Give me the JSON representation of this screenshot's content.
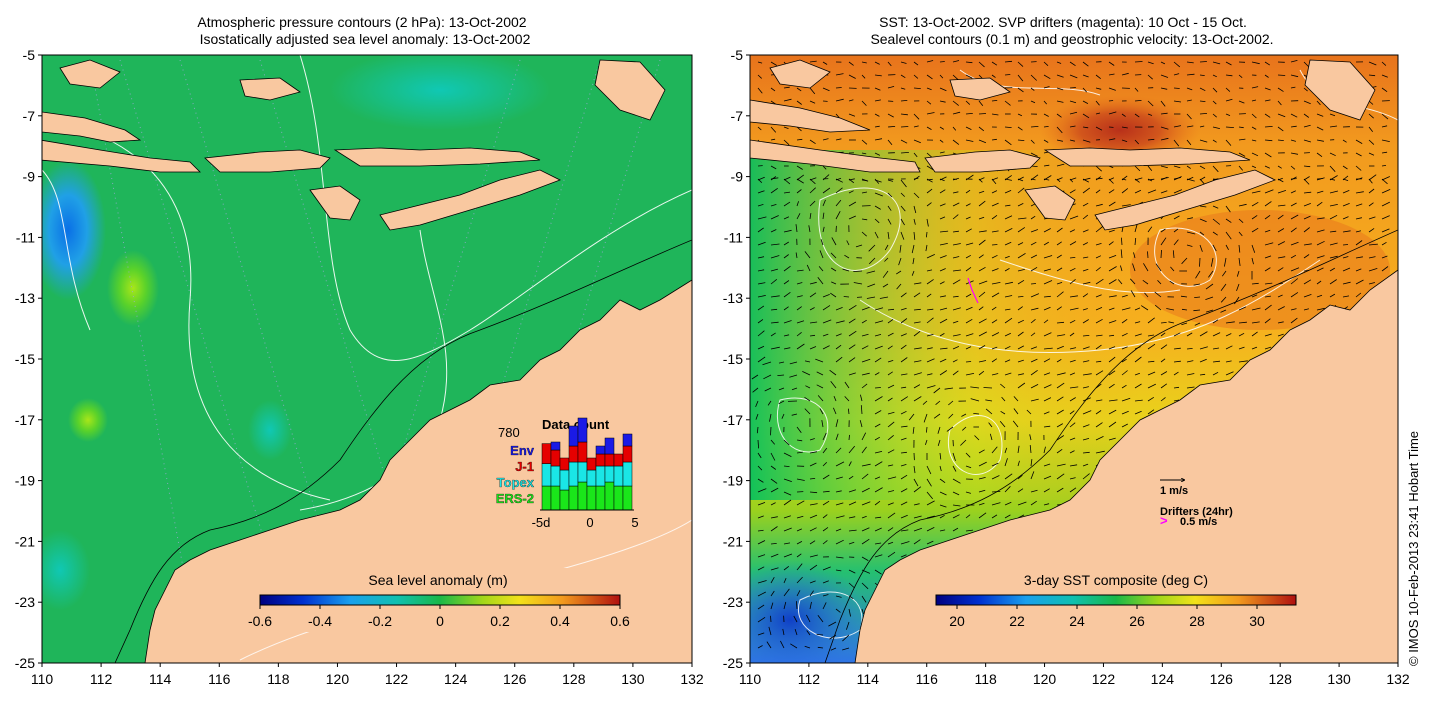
{
  "left_panel": {
    "title_line1": "Atmospheric pressure contours (2 hPa): 13-Oct-2002",
    "title_line2": "Isostatically adjusted sea level anomaly: 13-Oct-2002",
    "colorbar": {
      "label": "Sea level anomaly (m)",
      "ticks": [
        "-0.6",
        "-0.4",
        "-0.2",
        "0",
        "0.2",
        "0.4",
        "0.6"
      ],
      "range": [
        -0.6,
        0.6
      ]
    },
    "data_count": {
      "title": "Data count",
      "total": "780",
      "legend": [
        {
          "name": "Env",
          "color": "#1a1ae6"
        },
        {
          "name": "J-1",
          "color": "#e60000"
        },
        {
          "name": "Topex",
          "color": "#1ae6e6"
        },
        {
          "name": "ERS-2",
          "color": "#1ae61a"
        }
      ],
      "x_ticks": [
        "-5d",
        "0",
        "5"
      ],
      "bars": [
        {
          "ers2": 0.3,
          "topex": 0.28,
          "j1": 0.25,
          "env": 0.0
        },
        {
          "ers2": 0.3,
          "topex": 0.25,
          "j1": 0.2,
          "env": 0.1
        },
        {
          "ers2": 0.25,
          "topex": 0.25,
          "j1": 0.15,
          "env": 0.0
        },
        {
          "ers2": 0.3,
          "topex": 0.3,
          "j1": 0.2,
          "env": 0.25
        },
        {
          "ers2": 0.35,
          "topex": 0.25,
          "j1": 0.25,
          "env": 0.3
        },
        {
          "ers2": 0.3,
          "topex": 0.2,
          "j1": 0.15,
          "env": 0.0
        },
        {
          "ers2": 0.3,
          "topex": 0.25,
          "j1": 0.15,
          "env": 0.1
        },
        {
          "ers2": 0.35,
          "topex": 0.2,
          "j1": 0.15,
          "env": 0.2
        },
        {
          "ers2": 0.3,
          "topex": 0.25,
          "j1": 0.15,
          "env": 0.0
        },
        {
          "ers2": 0.3,
          "topex": 0.3,
          "j1": 0.2,
          "env": 0.15
        }
      ]
    }
  },
  "right_panel": {
    "title_line1": "SST: 13-Oct-2002. SVP drifters (magenta): 10 Oct - 15 Oct.",
    "title_line2": "Sealevel contours (0.1 m) and geostrophic velocity: 13-Oct-2002.",
    "colorbar": {
      "label": "3-day SST composite (deg C)",
      "ticks": [
        "20",
        "22",
        "24",
        "26",
        "28",
        "30"
      ],
      "range": [
        19.3,
        31.3
      ]
    },
    "velocity_key": "1 m/s",
    "drifter_key_title": "Drifters (24hr)",
    "drifter_key_value": "0.5 m/s",
    "drifter_symbol": ">"
  },
  "axes": {
    "lon_ticks": [
      "110",
      "112",
      "114",
      "116",
      "118",
      "120",
      "122",
      "124",
      "126",
      "128",
      "130",
      "132"
    ],
    "lat_ticks": [
      "-5",
      "-7",
      "-9",
      "-11",
      "-13",
      "-15",
      "-17",
      "-19",
      "-21",
      "-23",
      "-25"
    ],
    "lon_range": [
      110,
      132
    ],
    "lat_range": [
      -25,
      -5
    ]
  },
  "credit": "© IMOS 10-Feb-2013 23:41 Hobart Time",
  "colors": {
    "land": "#f9c8a0",
    "sla_ocean": "#1fb55a",
    "sst_warm": "#f29a1e",
    "sst_cool": "#2f74e6",
    "magenta": "#ff00ff"
  }
}
